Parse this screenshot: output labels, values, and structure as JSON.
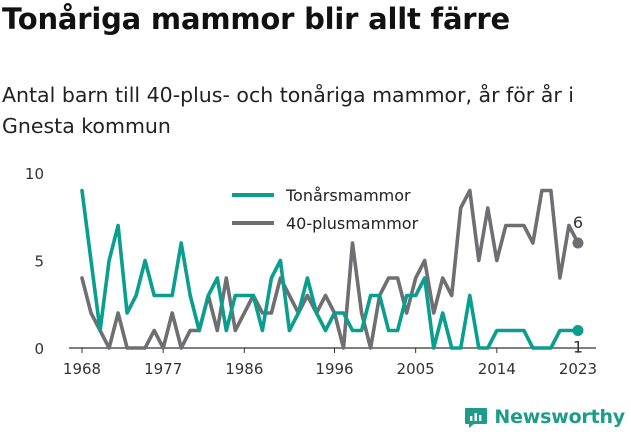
{
  "title": "Tonåriga mammor blir allt färre",
  "subtitle": "Antal barn till 40-plus- och tonåriga mammor, år för år i Gnesta kommun",
  "brand": "Newsworthy",
  "chart_data": {
    "type": "line",
    "x": [
      1968,
      1969,
      1970,
      1971,
      1972,
      1973,
      1974,
      1975,
      1976,
      1977,
      1978,
      1979,
      1980,
      1981,
      1982,
      1983,
      1984,
      1985,
      1986,
      1987,
      1988,
      1989,
      1990,
      1991,
      1992,
      1993,
      1994,
      1995,
      1996,
      1997,
      1998,
      1999,
      2000,
      2001,
      2002,
      2003,
      2004,
      2005,
      2006,
      2007,
      2008,
      2009,
      2010,
      2011,
      2012,
      2013,
      2014,
      2015,
      2016,
      2017,
      2018,
      2019,
      2020,
      2021,
      2022,
      2023
    ],
    "series": [
      {
        "name": "Tonårsmammor",
        "color": "#0a9e8f",
        "values": [
          9,
          5,
          1,
          5,
          7,
          2,
          3,
          5,
          3,
          3,
          3,
          6,
          3,
          1,
          3,
          4,
          1,
          3,
          3,
          3,
          1,
          4,
          5,
          1,
          2,
          4,
          2,
          1,
          2,
          2,
          1,
          1,
          3,
          3,
          1,
          1,
          3,
          3,
          4,
          0,
          2,
          0,
          0,
          3,
          0,
          0,
          1,
          1,
          1,
          1,
          0,
          0,
          0,
          1,
          1,
          1
        ]
      },
      {
        "name": "40-plusmammor",
        "color": "#6e6e73",
        "values": [
          4,
          2,
          1,
          0,
          2,
          0,
          0,
          0,
          1,
          0,
          2,
          0,
          1,
          1,
          3,
          1,
          4,
          1,
          2,
          3,
          2,
          2,
          4,
          3,
          2,
          3,
          2,
          3,
          2,
          0,
          6,
          2,
          0,
          3,
          4,
          4,
          2,
          4,
          5,
          2,
          4,
          3,
          8,
          9,
          5,
          8,
          5,
          7,
          7,
          7,
          6,
          9,
          9,
          4,
          7,
          6
        ]
      }
    ],
    "xticks": [
      "1968",
      "1977",
      "1986",
      "1996",
      "2005",
      "2014",
      "2023"
    ],
    "yticks": [
      "0",
      "5",
      "10"
    ],
    "ylim": [
      0,
      10
    ],
    "xlim": [
      1967,
      2025
    ],
    "end_labels": {
      "40-plusmammor": "6",
      "Tonårsmammor": "1"
    },
    "legend_position": "top-center",
    "grid": false
  }
}
